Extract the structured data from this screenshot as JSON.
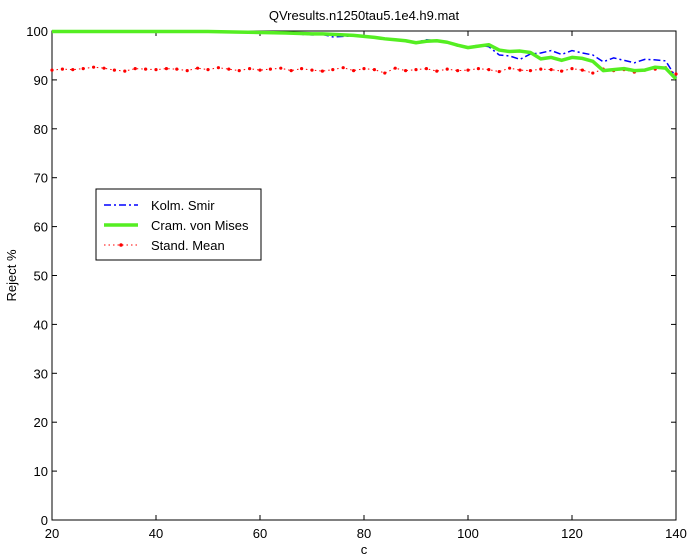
{
  "chart_data": {
    "type": "line",
    "title": "QVresults.n1250tau5.1e4.h9.mat",
    "xlabel": "c",
    "ylabel": "Reject %",
    "xlim": [
      20,
      140
    ],
    "ylim": [
      0,
      100
    ],
    "xticks": [
      20,
      40,
      60,
      80,
      100,
      120,
      140
    ],
    "yticks": [
      0,
      10,
      20,
      30,
      40,
      50,
      60,
      70,
      80,
      90,
      100
    ],
    "grid": false,
    "legend_position": "middle-left",
    "series": [
      {
        "name": "Kolm. Smir",
        "color": "#0000ff",
        "style": "dashdot",
        "x": [
          20,
          30,
          40,
          50,
          55,
          60,
          65,
          70,
          72,
          74,
          76,
          78,
          80,
          82,
          84,
          86,
          88,
          90,
          92,
          94,
          96,
          98,
          100,
          102,
          104,
          106,
          108,
          110,
          112,
          114,
          116,
          118,
          120,
          122,
          124,
          126,
          128,
          130,
          132,
          134,
          136,
          138,
          140
        ],
        "values": [
          99.9,
          99.9,
          99.9,
          99.9,
          99.8,
          99.6,
          99.5,
          99.2,
          99.3,
          98.8,
          98.9,
          99.0,
          98.9,
          98.6,
          98.3,
          98.4,
          97.8,
          97.7,
          98.2,
          98.0,
          97.8,
          96.9,
          96.7,
          97.1,
          96.8,
          95.1,
          94.9,
          94.2,
          95.3,
          95.5,
          96.0,
          95.2,
          96.0,
          95.5,
          95.1,
          93.7,
          94.5,
          94.0,
          93.5,
          94.2,
          94.1,
          93.9,
          90.5
        ]
      },
      {
        "name": "Cram. von Mises",
        "color": "#55ee22",
        "style": "solid",
        "x": [
          20,
          30,
          40,
          50,
          55,
          60,
          65,
          70,
          72,
          74,
          76,
          78,
          80,
          82,
          84,
          86,
          88,
          90,
          92,
          94,
          96,
          98,
          100,
          102,
          104,
          106,
          108,
          110,
          112,
          114,
          116,
          118,
          120,
          122,
          124,
          126,
          128,
          130,
          132,
          134,
          136,
          138,
          140
        ],
        "values": [
          99.9,
          99.9,
          99.9,
          99.9,
          99.8,
          99.7,
          99.6,
          99.4,
          99.4,
          99.3,
          99.2,
          99.1,
          98.9,
          98.7,
          98.4,
          98.2,
          98.0,
          97.6,
          97.9,
          98.0,
          97.7,
          97.1,
          96.6,
          96.9,
          97.2,
          96.1,
          95.8,
          95.9,
          95.6,
          94.3,
          94.6,
          94.0,
          94.6,
          94.4,
          93.8,
          91.9,
          92.1,
          92.3,
          91.9,
          92.0,
          92.6,
          92.4,
          90.2
        ]
      },
      {
        "name": "Stand. Mean",
        "color": "#ff0000",
        "style": "dotted-markers",
        "x": [
          20,
          22,
          24,
          26,
          28,
          30,
          32,
          34,
          36,
          38,
          40,
          42,
          44,
          46,
          48,
          50,
          52,
          54,
          56,
          58,
          60,
          62,
          64,
          66,
          68,
          70,
          72,
          74,
          76,
          78,
          80,
          82,
          84,
          86,
          88,
          90,
          92,
          94,
          96,
          98,
          100,
          102,
          104,
          106,
          108,
          110,
          112,
          114,
          116,
          118,
          120,
          122,
          124,
          126,
          128,
          130,
          132,
          134,
          136,
          138,
          140
        ],
        "values": [
          92.0,
          92.2,
          92.1,
          92.3,
          92.6,
          92.4,
          92.0,
          91.8,
          92.3,
          92.2,
          92.1,
          92.3,
          92.2,
          91.9,
          92.4,
          92.1,
          92.5,
          92.2,
          91.9,
          92.3,
          92.0,
          92.2,
          92.4,
          91.9,
          92.3,
          92.0,
          91.8,
          92.1,
          92.5,
          91.9,
          92.3,
          92.1,
          91.4,
          92.4,
          91.9,
          92.1,
          92.3,
          91.8,
          92.2,
          91.9,
          92.0,
          92.3,
          92.1,
          91.7,
          92.4,
          92.0,
          91.9,
          92.2,
          92.1,
          91.8,
          92.3,
          92.0,
          91.4,
          92.2,
          91.9,
          92.1,
          91.6,
          92.0,
          92.2,
          92.5,
          91.2
        ]
      }
    ]
  }
}
